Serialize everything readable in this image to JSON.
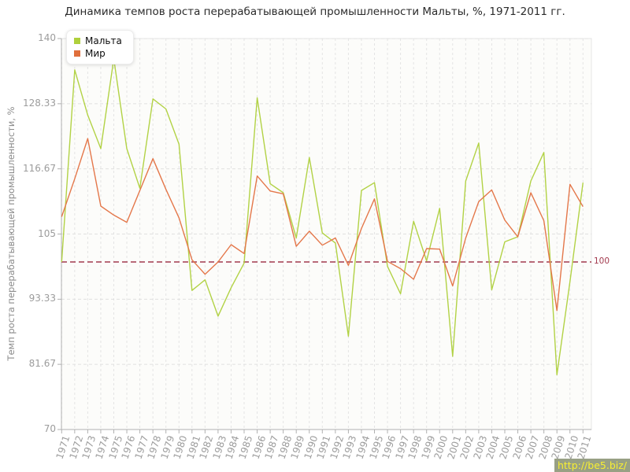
{
  "title": "Динамика темпов роста перерабатывающей промышленности Мальты, %, 1971-2011 гг.",
  "watermark": "http://be5.biz/",
  "legend": [
    {
      "label": "Мальта",
      "color": "#afd03c"
    },
    {
      "label": "Мир",
      "color": "#e06f3c"
    }
  ],
  "reference_line": {
    "value": 100,
    "label": "100",
    "color": "#a23a4e"
  },
  "colors": {
    "malta_line": "#b2d245",
    "world_line": "#e4774a",
    "grid": "#e0e0e0",
    "axis": "#b0b0b0",
    "tick_text": "#9c9c9c",
    "plot_bg": "#fcfcfa",
    "ref_line": "#a23a4e",
    "watermark_bg": "#98a084",
    "watermark_text": "#f8ef31"
  },
  "chart_data": {
    "type": "line",
    "title": "Динамика темпов роста перерабатывающей промышленности Мальты, %, 1971-2011 гг.",
    "xlabel": "",
    "ylabel": "Темп роста перерабатывающей промышленности, %",
    "ylim": [
      70,
      140
    ],
    "yticks": [
      70,
      81.67,
      93.33,
      105,
      116.67,
      128.33,
      140
    ],
    "ytick_labels": [
      "70",
      "81.67",
      "93.33",
      "105",
      "116.67",
      "128.33",
      "140"
    ],
    "grid": true,
    "legend_position": "top-left",
    "reference_line": 100,
    "x": [
      1971,
      1972,
      1973,
      1974,
      1975,
      1976,
      1977,
      1978,
      1979,
      1980,
      1981,
      1982,
      1983,
      1984,
      1985,
      1986,
      1987,
      1988,
      1989,
      1990,
      1991,
      1992,
      1993,
      1994,
      1995,
      1996,
      1997,
      1998,
      1999,
      2000,
      2001,
      2002,
      2003,
      2004,
      2005,
      2006,
      2007,
      2008,
      2009,
      2010,
      2011
    ],
    "series": [
      {
        "name": "Мальта",
        "color": "#b2d245",
        "values": [
          100.0,
          134.4,
          126.3,
          120.3,
          136.4,
          120.3,
          113.2,
          129.2,
          127.4,
          121.1,
          94.9,
          96.8,
          90.3,
          95.4,
          99.8,
          129.4,
          114.0,
          112.4,
          104.3,
          118.7,
          105.2,
          103.4,
          86.7,
          112.8,
          114.2,
          99.2,
          94.3,
          107.3,
          100.2,
          109.6,
          83.1,
          114.5,
          121.3,
          95.0,
          103.6,
          104.5,
          114.5,
          119.6,
          79.8,
          96.5,
          114.2
        ]
      },
      {
        "name": "Мир",
        "color": "#e4774a",
        "values": [
          108.1,
          114.9,
          122.1,
          110.0,
          108.4,
          107.1,
          112.8,
          118.5,
          113.0,
          107.9,
          100.4,
          97.8,
          100.0,
          103.1,
          101.5,
          115.4,
          112.7,
          112.2,
          102.8,
          105.5,
          103.0,
          104.3,
          99.4,
          106.0,
          111.3,
          100.1,
          98.8,
          96.9,
          102.4,
          102.3,
          95.7,
          104.3,
          110.8,
          112.9,
          107.5,
          104.5,
          112.4,
          107.4,
          91.3,
          113.9,
          109.9
        ]
      }
    ]
  }
}
